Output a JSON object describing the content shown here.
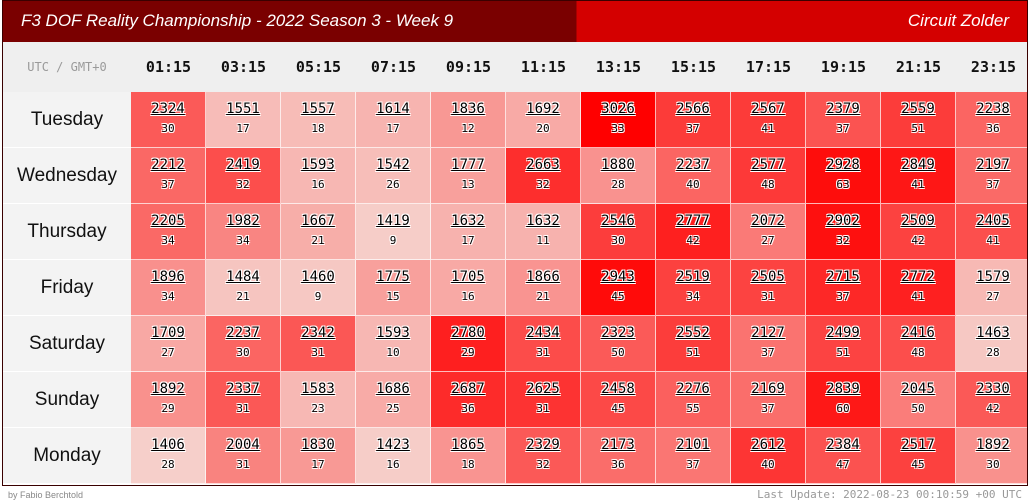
{
  "header": {
    "title": "F3 DOF Reality Championship - 2022 Season 3 - Week 9",
    "track": "Circuit Zolder"
  },
  "timezone_label": "UTC / GMT+0",
  "hours": [
    "01:15",
    "03:15",
    "05:15",
    "07:15",
    "09:15",
    "11:15",
    "13:15",
    "15:15",
    "17:15",
    "19:15",
    "21:15",
    "23:15"
  ],
  "rows": [
    {
      "day": "Tuesday",
      "cells": [
        [
          2324,
          30
        ],
        [
          1551,
          17
        ],
        [
          1557,
          18
        ],
        [
          1614,
          17
        ],
        [
          1836,
          12
        ],
        [
          1692,
          20
        ],
        [
          3026,
          33
        ],
        [
          2566,
          37
        ],
        [
          2567,
          41
        ],
        [
          2379,
          37
        ],
        [
          2559,
          51
        ],
        [
          2238,
          36
        ]
      ]
    },
    {
      "day": "Wednesday",
      "cells": [
        [
          2212,
          37
        ],
        [
          2419,
          32
        ],
        [
          1593,
          16
        ],
        [
          1542,
          26
        ],
        [
          1777,
          13
        ],
        [
          2663,
          32
        ],
        [
          1880,
          28
        ],
        [
          2237,
          40
        ],
        [
          2577,
          48
        ],
        [
          2928,
          63
        ],
        [
          2849,
          41
        ],
        [
          2197,
          37
        ]
      ]
    },
    {
      "day": "Thursday",
      "cells": [
        [
          2205,
          34
        ],
        [
          1982,
          34
        ],
        [
          1667,
          21
        ],
        [
          1419,
          9
        ],
        [
          1632,
          17
        ],
        [
          1632,
          11
        ],
        [
          2546,
          30
        ],
        [
          2777,
          42
        ],
        [
          2072,
          27
        ],
        [
          2902,
          32
        ],
        [
          2509,
          42
        ],
        [
          2405,
          41
        ]
      ]
    },
    {
      "day": "Friday",
      "cells": [
        [
          1896,
          34
        ],
        [
          1484,
          21
        ],
        [
          1460,
          9
        ],
        [
          1775,
          15
        ],
        [
          1705,
          16
        ],
        [
          1866,
          21
        ],
        [
          2943,
          45
        ],
        [
          2519,
          34
        ],
        [
          2505,
          31
        ],
        [
          2715,
          37
        ],
        [
          2772,
          41
        ],
        [
          1579,
          27
        ]
      ]
    },
    {
      "day": "Saturday",
      "cells": [
        [
          1709,
          27
        ],
        [
          2237,
          30
        ],
        [
          2342,
          31
        ],
        [
          1593,
          10
        ],
        [
          2780,
          29
        ],
        [
          2434,
          31
        ],
        [
          2323,
          50
        ],
        [
          2552,
          51
        ],
        [
          2127,
          37
        ],
        [
          2499,
          51
        ],
        [
          2416,
          48
        ],
        [
          1463,
          28
        ]
      ]
    },
    {
      "day": "Sunday",
      "cells": [
        [
          1892,
          29
        ],
        [
          2337,
          31
        ],
        [
          1583,
          23
        ],
        [
          1686,
          25
        ],
        [
          2687,
          36
        ],
        [
          2625,
          31
        ],
        [
          2458,
          45
        ],
        [
          2276,
          55
        ],
        [
          2169,
          37
        ],
        [
          2839,
          60
        ],
        [
          2045,
          50
        ],
        [
          2330,
          42
        ]
      ]
    },
    {
      "day": "Monday",
      "cells": [
        [
          1406,
          28
        ],
        [
          2004,
          31
        ],
        [
          1830,
          17
        ],
        [
          1423,
          16
        ],
        [
          1865,
          18
        ],
        [
          2329,
          32
        ],
        [
          2173,
          36
        ],
        [
          2101,
          37
        ],
        [
          2612,
          40
        ],
        [
          2384,
          47
        ],
        [
          2517,
          45
        ],
        [
          1892,
          30
        ]
      ]
    }
  ],
  "colors": {
    "header_dark": "#7a0000",
    "header_bright": "#d40000",
    "cell_max": "#ff0000",
    "cell_min": "#f6cfca"
  },
  "footer": {
    "credit": "by Fabio Berchtold",
    "updated": "Last Update: 2022-08-23 00:10:59 +00 UTC"
  }
}
